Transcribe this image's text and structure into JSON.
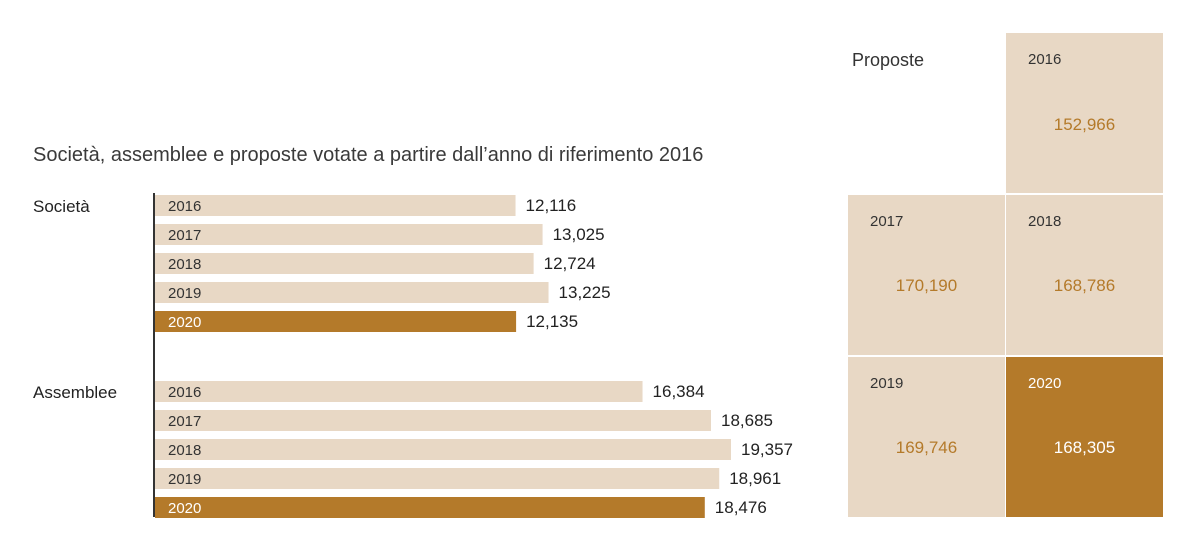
{
  "chart_data": [
    {
      "type": "bar",
      "title": "Società, assemblee e proposte votate a partire dall’anno di riferimento 2016",
      "groups": [
        {
          "name": "Società",
          "categories": [
            "2016",
            "2017",
            "2018",
            "2019",
            "2020"
          ],
          "values": [
            12116,
            13025,
            12724,
            13225,
            12135
          ],
          "value_labels": [
            "12,116",
            "13,025",
            "12,724",
            "13,225",
            "12,135"
          ],
          "highlight": "2020"
        },
        {
          "name": "Assemblee",
          "categories": [
            "2016",
            "2017",
            "2018",
            "2019",
            "2020"
          ],
          "values": [
            16384,
            18685,
            19357,
            18961,
            18476
          ],
          "value_labels": [
            "16,384",
            "18,685",
            "19,357",
            "18,961",
            "18,476"
          ],
          "highlight": "2020"
        }
      ],
      "xlim": [
        0,
        21000
      ],
      "grid": false,
      "orientation": "horizontal"
    },
    {
      "type": "table",
      "title": "Proposte",
      "cells": [
        {
          "year": "2016",
          "value": 152966,
          "label": "152,966",
          "highlight": false
        },
        {
          "year": "2017",
          "value": 170190,
          "label": "170,190",
          "highlight": false
        },
        {
          "year": "2018",
          "value": 168786,
          "label": "168,786",
          "highlight": false
        },
        {
          "year": "2019",
          "value": 169746,
          "label": "169,746",
          "highlight": false
        },
        {
          "year": "2020",
          "value": 168305,
          "label": "168,305",
          "highlight": true
        }
      ]
    }
  ],
  "colors": {
    "bar": "#e8d8c5",
    "bar_highlight": "#b47a2a",
    "value_text_on_light": "#b47a2a",
    "value_text_on_dark": "#ffffff",
    "axis": "#333333"
  }
}
